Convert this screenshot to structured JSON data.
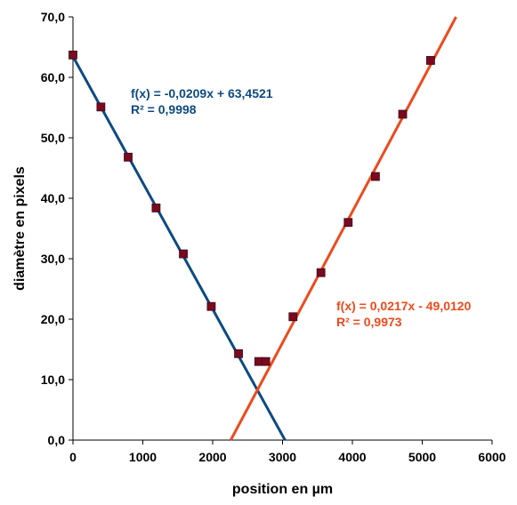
{
  "chart_data": {
    "type": "scatter",
    "xlabel": "position en µm",
    "ylabel": "diamètre en pixels",
    "xlim": [
      0,
      6000
    ],
    "ylim": [
      0,
      70
    ],
    "x_ticks": [
      "0",
      "1000",
      "2000",
      "3000",
      "4000",
      "5000",
      "6000"
    ],
    "y_ticks": [
      "0,0",
      "10,0",
      "20,0",
      "30,0",
      "40,0",
      "50,0",
      "60,0",
      "70,0"
    ],
    "grid": false,
    "points": [
      {
        "x": 0,
        "y": 63.7
      },
      {
        "x": 400,
        "y": 55.1
      },
      {
        "x": 790,
        "y": 46.8
      },
      {
        "x": 1190,
        "y": 38.4
      },
      {
        "x": 1580,
        "y": 30.8
      },
      {
        "x": 1980,
        "y": 22.1
      },
      {
        "x": 2370,
        "y": 14.3
      },
      {
        "x": 2660,
        "y": 13.0
      },
      {
        "x": 2760,
        "y": 13.0
      },
      {
        "x": 3150,
        "y": 20.4
      },
      {
        "x": 3550,
        "y": 27.7
      },
      {
        "x": 3940,
        "y": 36.0
      },
      {
        "x": 4330,
        "y": 43.6
      },
      {
        "x": 4720,
        "y": 53.9
      },
      {
        "x": 5120,
        "y": 62.8
      }
    ],
    "marker_color": "#7a0a1e",
    "trendlines": [
      {
        "slope": -0.0209,
        "intercept": 63.4521,
        "equation": "f(x) = -0,0209x + 63,4521",
        "r2": "R² = 0,9998",
        "color": "#0d4a82"
      },
      {
        "slope": 0.0217,
        "intercept": -49.012,
        "equation": "f(x) = 0,0217x - 49,0120",
        "r2": "R² = 0,9973",
        "color": "#ee4a1c"
      }
    ]
  }
}
